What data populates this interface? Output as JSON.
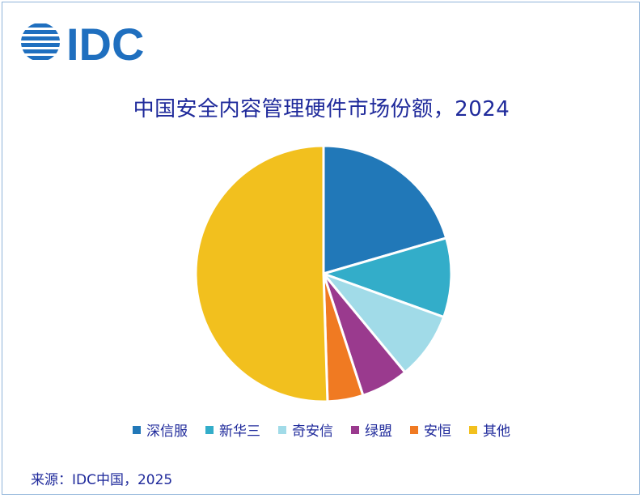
{
  "logo_text": "IDC",
  "source": "来源：IDC中国，2025",
  "colors": {
    "brand": "#1f6fbf",
    "title": "#1f2a9b"
  },
  "chart_data": {
    "type": "pie",
    "title": "中国安全内容管理硬件市场份额，2024",
    "slices": [
      {
        "label": "深信服",
        "value": 20.5,
        "color": "#2178b8"
      },
      {
        "label": "新华三",
        "value": 10.0,
        "color": "#33adc9"
      },
      {
        "label": "奇安信",
        "value": 8.5,
        "color": "#a1dbe8"
      },
      {
        "label": "绿盟",
        "value": 6.0,
        "color": "#9a3a8e"
      },
      {
        "label": "安恒",
        "value": 4.5,
        "color": "#f07a22"
      },
      {
        "label": "其他",
        "value": 50.5,
        "color": "#f2c01e"
      }
    ],
    "legend_position": "bottom"
  }
}
